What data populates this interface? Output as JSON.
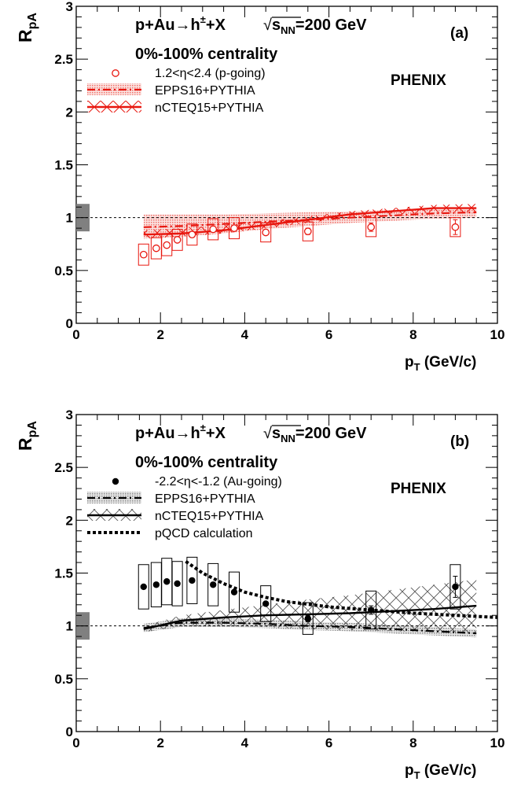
{
  "chart_data": [
    {
      "type": "scatter",
      "panel_label": "(a)",
      "title_line1": "p+Au→h±+X",
      "energy_label": "√sNN=200 GeV",
      "title_line2": "0%-100% centrality",
      "experiment": "PHENIX",
      "xlabel": "pT (GeV/c)",
      "ylabel": "RpA",
      "xlim": [
        0,
        10
      ],
      "ylim": [
        0,
        3
      ],
      "x_ticks": [
        "0",
        "2",
        "4",
        "6",
        "8",
        "10"
      ],
      "y_ticks": [
        "0",
        "0.5",
        "1",
        "1.5",
        "2",
        "2.5",
        "3"
      ],
      "reference_line": 1,
      "global_uncertainty": [
        0.87,
        1.13
      ],
      "accent_color": "#e8170f",
      "band_color": "#f4b9b4",
      "data_series": {
        "name": "1.2<η<2.4 (p-going)",
        "marker": "open-circle",
        "x": [
          1.6,
          1.9,
          2.15,
          2.4,
          2.75,
          3.25,
          3.75,
          4.5,
          5.5,
          7.0,
          9.0
        ],
        "y": [
          0.65,
          0.71,
          0.74,
          0.79,
          0.84,
          0.89,
          0.9,
          0.86,
          0.87,
          0.91,
          0.91
        ],
        "stat_err": [
          0.01,
          0.01,
          0.01,
          0.01,
          0.01,
          0.01,
          0.01,
          0.02,
          0.03,
          0.04,
          0.07
        ],
        "sys_err": [
          0.1,
          0.1,
          0.1,
          0.1,
          0.1,
          0.1,
          0.1,
          0.09,
          0.09,
          0.09,
          0.09
        ]
      },
      "models": [
        {
          "name": "EPPS16+PYTHIA",
          "line": "dash-dot",
          "x": [
            1.6,
            2.5,
            3.5,
            4.5,
            5.5,
            6.5,
            7.5,
            8.5,
            9.5
          ],
          "center": [
            0.91,
            0.92,
            0.94,
            0.96,
            0.98,
            1.0,
            1.02,
            1.04,
            1.05
          ],
          "band_low": [
            0.8,
            0.82,
            0.85,
            0.89,
            0.92,
            0.95,
            0.97,
            0.99,
            1.0
          ],
          "band_high": [
            1.03,
            1.03,
            1.03,
            1.04,
            1.05,
            1.06,
            1.07,
            1.08,
            1.09
          ]
        },
        {
          "name": "nCTEQ15+PYTHIA",
          "line": "solid",
          "x": [
            1.6,
            2.5,
            3.5,
            4.5,
            5.5,
            6.5,
            7.5,
            8.5,
            9.5
          ],
          "center": [
            0.84,
            0.85,
            0.88,
            0.93,
            0.98,
            1.03,
            1.06,
            1.09,
            1.09
          ],
          "band_low": [
            0.8,
            0.82,
            0.85,
            0.9,
            0.95,
            1.0,
            1.03,
            1.05,
            1.05
          ],
          "band_high": [
            0.88,
            0.9,
            0.93,
            0.97,
            1.01,
            1.06,
            1.09,
            1.12,
            1.13
          ]
        }
      ]
    },
    {
      "type": "scatter",
      "panel_label": "(b)",
      "title_line1": "p+Au→h±+X",
      "energy_label": "√sNN=200 GeV",
      "title_line2": "0%-100% centrality",
      "experiment": "PHENIX",
      "xlabel": "pT (GeV/c)",
      "ylabel": "RpA",
      "xlim": [
        0,
        10
      ],
      "ylim": [
        0,
        3
      ],
      "x_ticks": [
        "0",
        "2",
        "4",
        "6",
        "8",
        "10"
      ],
      "y_ticks": [
        "0",
        "0.5",
        "1",
        "1.5",
        "2",
        "2.5",
        "3"
      ],
      "reference_line": 1,
      "global_uncertainty": [
        0.87,
        1.13
      ],
      "accent_color": "#000000",
      "band_color": "#c8c8c8",
      "data_series": {
        "name": "-2.2<η<-1.2 (Au-going)",
        "marker": "filled-circle",
        "x": [
          1.6,
          1.9,
          2.15,
          2.4,
          2.75,
          3.25,
          3.75,
          4.5,
          5.5,
          7.0,
          9.0
        ],
        "y": [
          1.37,
          1.39,
          1.42,
          1.4,
          1.43,
          1.39,
          1.32,
          1.21,
          1.07,
          1.15,
          1.37
        ],
        "stat_err": [
          0.01,
          0.01,
          0.01,
          0.01,
          0.01,
          0.01,
          0.01,
          0.02,
          0.03,
          0.04,
          0.1
        ],
        "sys_err": [
          0.21,
          0.21,
          0.22,
          0.21,
          0.22,
          0.2,
          0.19,
          0.17,
          0.15,
          0.18,
          0.21
        ]
      },
      "models": [
        {
          "name": "EPPS16+PYTHIA",
          "line": "dash-dot",
          "x": [
            1.6,
            2.5,
            3.5,
            4.5,
            5.5,
            6.5,
            7.5,
            8.5,
            9.5
          ],
          "center": [
            0.98,
            1.03,
            1.03,
            1.02,
            1.0,
            0.99,
            0.97,
            0.95,
            0.93
          ],
          "band_low": [
            0.94,
            0.99,
            0.99,
            0.98,
            0.96,
            0.95,
            0.93,
            0.91,
            0.89
          ],
          "band_high": [
            1.02,
            1.07,
            1.07,
            1.06,
            1.04,
            1.03,
            1.01,
            0.99,
            0.97
          ]
        },
        {
          "name": "nCTEQ15+PYTHIA",
          "line": "solid",
          "x": [
            1.6,
            2.5,
            3.5,
            4.5,
            5.5,
            6.5,
            7.5,
            8.5,
            9.5
          ],
          "center": [
            0.97,
            1.05,
            1.08,
            1.1,
            1.11,
            1.12,
            1.14,
            1.16,
            1.19
          ],
          "band_low": [
            0.94,
            1.0,
            1.0,
            0.99,
            0.97,
            0.96,
            0.95,
            0.94,
            0.93
          ],
          "band_high": [
            1.0,
            1.1,
            1.15,
            1.2,
            1.25,
            1.29,
            1.34,
            1.39,
            1.44
          ]
        },
        {
          "name": "pQCD calculation",
          "line": "dotted",
          "x": [
            2.6,
            3.0,
            3.5,
            4.0,
            4.5,
            5.0,
            6.0,
            7.0,
            8.0,
            9.0,
            10.0
          ],
          "center": [
            1.61,
            1.5,
            1.4,
            1.32,
            1.27,
            1.23,
            1.18,
            1.15,
            1.12,
            1.1,
            1.08
          ]
        }
      ]
    }
  ]
}
